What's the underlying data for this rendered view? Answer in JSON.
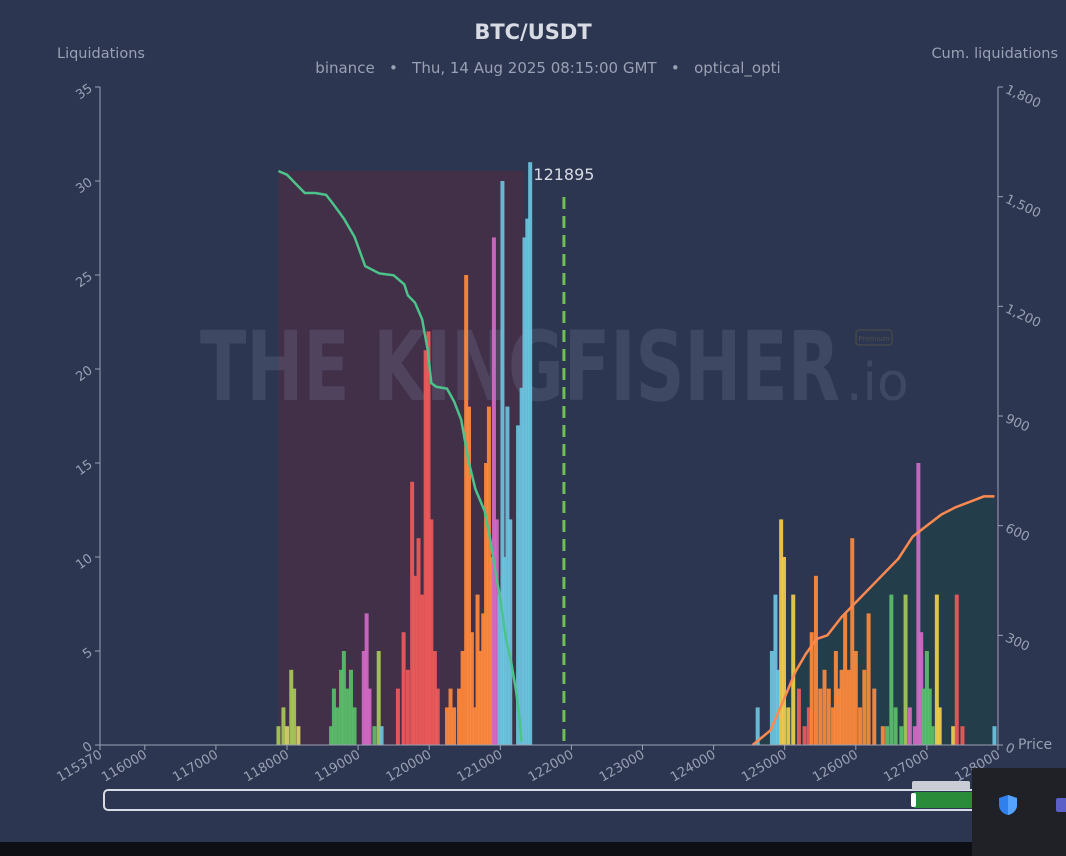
{
  "header": {
    "title": "BTC/USDT",
    "subtitle_exchange": "binance",
    "subtitle_sep": "•",
    "subtitle_time": "Thu, 14 Aug 2025 08:15:00 GMT",
    "subtitle_user": "optical_opti"
  },
  "watermark": {
    "brand": "THE KINGFISHER",
    "suffix": ".io",
    "badge": "Premium"
  },
  "chart_data": {
    "type": "bar",
    "ylabel": "Liquidations",
    "y2label": "Cum. liquidations",
    "price_axis_label": "Price",
    "current_price_label": "121895",
    "current_price": 121895,
    "xlim": [
      115370,
      128000
    ],
    "ylim": [
      0,
      35
    ],
    "y2lim": [
      0,
      1800
    ],
    "x_ticks": [
      115370,
      116000,
      117000,
      118000,
      119000,
      120000,
      121000,
      122000,
      123000,
      124000,
      125000,
      126000,
      127000,
      128000
    ],
    "y_ticks": [
      0,
      5,
      10,
      15,
      20,
      25,
      30,
      35
    ],
    "y2_ticks": [
      0,
      300,
      600,
      900,
      1200,
      1500,
      1800
    ],
    "y2_tick_labels": [
      "0",
      "300",
      "600",
      "900",
      "1,200",
      "1,500",
      "1,800"
    ],
    "grid": false,
    "bars": [
      {
        "x": 117880,
        "y": 1,
        "color": "#a7c957"
      },
      {
        "x": 117950,
        "y": 2,
        "color": "#a7c957"
      },
      {
        "x": 118000,
        "y": 1,
        "color": "#d9d36a"
      },
      {
        "x": 118060,
        "y": 4,
        "color": "#a7c957"
      },
      {
        "x": 118100,
        "y": 3,
        "color": "#a7c957"
      },
      {
        "x": 118160,
        "y": 1,
        "color": "#d9d36a"
      },
      {
        "x": 118620,
        "y": 1,
        "color": "#5bbf6a"
      },
      {
        "x": 118660,
        "y": 3,
        "color": "#5bbf6a"
      },
      {
        "x": 118710,
        "y": 2,
        "color": "#5bbf6a"
      },
      {
        "x": 118760,
        "y": 4,
        "color": "#5bbf6a"
      },
      {
        "x": 118800,
        "y": 5,
        "color": "#5bbf6a"
      },
      {
        "x": 118850,
        "y": 3,
        "color": "#5bbf6a"
      },
      {
        "x": 118900,
        "y": 4,
        "color": "#5bbf6a"
      },
      {
        "x": 118950,
        "y": 2,
        "color": "#5bbf6a"
      },
      {
        "x": 119080,
        "y": 5,
        "color": "#d36ac7"
      },
      {
        "x": 119120,
        "y": 7,
        "color": "#d36ac7"
      },
      {
        "x": 119160,
        "y": 3,
        "color": "#d36ac7"
      },
      {
        "x": 119230,
        "y": 1,
        "color": "#5bbf6a"
      },
      {
        "x": 119290,
        "y": 5,
        "color": "#a7c957"
      },
      {
        "x": 119330,
        "y": 1,
        "color": "#6cc4e0"
      },
      {
        "x": 119560,
        "y": 3,
        "color": "#ef5a5a"
      },
      {
        "x": 119640,
        "y": 6,
        "color": "#ef5a5a"
      },
      {
        "x": 119700,
        "y": 4,
        "color": "#ef5a5a"
      },
      {
        "x": 119760,
        "y": 14,
        "color": "#ef5a5a"
      },
      {
        "x": 119800,
        "y": 9,
        "color": "#ef5a5a"
      },
      {
        "x": 119850,
        "y": 11,
        "color": "#ef5a5a"
      },
      {
        "x": 119900,
        "y": 8,
        "color": "#ef5a5a"
      },
      {
        "x": 119950,
        "y": 21,
        "color": "#ef5a5a"
      },
      {
        "x": 119990,
        "y": 22,
        "color": "#ef5a5a"
      },
      {
        "x": 120030,
        "y": 12,
        "color": "#ef5a5a"
      },
      {
        "x": 120080,
        "y": 5,
        "color": "#ef5a5a"
      },
      {
        "x": 120120,
        "y": 3,
        "color": "#ef5a5a"
      },
      {
        "x": 120250,
        "y": 2,
        "color": "#ff8a3d"
      },
      {
        "x": 120300,
        "y": 3,
        "color": "#ff8a3d"
      },
      {
        "x": 120350,
        "y": 2,
        "color": "#ff8a3d"
      },
      {
        "x": 120420,
        "y": 3,
        "color": "#ff8a3d"
      },
      {
        "x": 120470,
        "y": 5,
        "color": "#ff8a3d"
      },
      {
        "x": 120520,
        "y": 25,
        "color": "#ff8a3d"
      },
      {
        "x": 120560,
        "y": 18,
        "color": "#ff8a3d"
      },
      {
        "x": 120600,
        "y": 6,
        "color": "#ff8a3d"
      },
      {
        "x": 120640,
        "y": 2,
        "color": "#ff8a3d"
      },
      {
        "x": 120680,
        "y": 8,
        "color": "#ff8a3d"
      },
      {
        "x": 120720,
        "y": 5,
        "color": "#ff8a3d"
      },
      {
        "x": 120760,
        "y": 7,
        "color": "#ff8a3d"
      },
      {
        "x": 120800,
        "y": 15,
        "color": "#ff8a3d"
      },
      {
        "x": 120840,
        "y": 18,
        "color": "#ff8a3d"
      },
      {
        "x": 120880,
        "y": 10,
        "color": "#ff8a3d"
      },
      {
        "x": 120910,
        "y": 27,
        "color": "#d36ac7"
      },
      {
        "x": 120950,
        "y": 12,
        "color": "#d36ac7"
      },
      {
        "x": 120990,
        "y": 8,
        "color": "#6cc4e0"
      },
      {
        "x": 121030,
        "y": 30,
        "color": "#6cc4e0"
      },
      {
        "x": 121060,
        "y": 10,
        "color": "#6cc4e0"
      },
      {
        "x": 121100,
        "y": 18,
        "color": "#6cc4e0"
      },
      {
        "x": 121140,
        "y": 12,
        "color": "#6cc4e0"
      },
      {
        "x": 121250,
        "y": 17,
        "color": "#6cc4e0"
      },
      {
        "x": 121300,
        "y": 19,
        "color": "#6cc4e0"
      },
      {
        "x": 121340,
        "y": 27,
        "color": "#6cc4e0"
      },
      {
        "x": 121380,
        "y": 28,
        "color": "#6cc4e0"
      },
      {
        "x": 121420,
        "y": 31,
        "color": "#6cc4e0"
      },
      {
        "x": 124620,
        "y": 2,
        "color": "#6cc4e0"
      },
      {
        "x": 124820,
        "y": 5,
        "color": "#6cc4e0"
      },
      {
        "x": 124870,
        "y": 8,
        "color": "#6cc4e0"
      },
      {
        "x": 124900,
        "y": 4,
        "color": "#6cc4e0"
      },
      {
        "x": 124950,
        "y": 12,
        "color": "#f2cd4b"
      },
      {
        "x": 124990,
        "y": 10,
        "color": "#f2cd4b"
      },
      {
        "x": 125050,
        "y": 2,
        "color": "#f2cd4b"
      },
      {
        "x": 125120,
        "y": 8,
        "color": "#f2cd4b"
      },
      {
        "x": 125200,
        "y": 3,
        "color": "#ef5a5a"
      },
      {
        "x": 125280,
        "y": 1,
        "color": "#ef5a5a"
      },
      {
        "x": 125340,
        "y": 2,
        "color": "#ef5a5a"
      },
      {
        "x": 125380,
        "y": 6,
        "color": "#ff8a3d"
      },
      {
        "x": 125440,
        "y": 9,
        "color": "#ff8a3d"
      },
      {
        "x": 125500,
        "y": 3,
        "color": "#ff8a3d"
      },
      {
        "x": 125560,
        "y": 4,
        "color": "#ff8a3d"
      },
      {
        "x": 125620,
        "y": 3,
        "color": "#ff8a3d"
      },
      {
        "x": 125680,
        "y": 2,
        "color": "#ff8a3d"
      },
      {
        "x": 125720,
        "y": 5,
        "color": "#ff8a3d"
      },
      {
        "x": 125760,
        "y": 3,
        "color": "#ff8a3d"
      },
      {
        "x": 125800,
        "y": 4,
        "color": "#ff8a3d"
      },
      {
        "x": 125850,
        "y": 7,
        "color": "#ff8a3d"
      },
      {
        "x": 125900,
        "y": 4,
        "color": "#ff8a3d"
      },
      {
        "x": 125950,
        "y": 11,
        "color": "#ff8a3d"
      },
      {
        "x": 126000,
        "y": 5,
        "color": "#ff8a3d"
      },
      {
        "x": 126060,
        "y": 2,
        "color": "#ff8a3d"
      },
      {
        "x": 126120,
        "y": 4,
        "color": "#ff8a3d"
      },
      {
        "x": 126180,
        "y": 7,
        "color": "#ff8a3d"
      },
      {
        "x": 126260,
        "y": 3,
        "color": "#ff8a3d"
      },
      {
        "x": 126380,
        "y": 1,
        "color": "#ff8a3d"
      },
      {
        "x": 126440,
        "y": 1,
        "color": "#5bbf6a"
      },
      {
        "x": 126500,
        "y": 8,
        "color": "#5bbf6a"
      },
      {
        "x": 126560,
        "y": 2,
        "color": "#5bbf6a"
      },
      {
        "x": 126640,
        "y": 1,
        "color": "#5bbf6a"
      },
      {
        "x": 126700,
        "y": 8,
        "color": "#a7c957"
      },
      {
        "x": 126760,
        "y": 2,
        "color": "#d36ac7"
      },
      {
        "x": 126830,
        "y": 1,
        "color": "#d36ac7"
      },
      {
        "x": 126880,
        "y": 15,
        "color": "#d36ac7"
      },
      {
        "x": 126920,
        "y": 6,
        "color": "#d36ac7"
      },
      {
        "x": 126960,
        "y": 3,
        "color": "#5bbf6a"
      },
      {
        "x": 127000,
        "y": 5,
        "color": "#5bbf6a"
      },
      {
        "x": 127040,
        "y": 3,
        "color": "#5bbf6a"
      },
      {
        "x": 127080,
        "y": 1,
        "color": "#5bbf6a"
      },
      {
        "x": 127140,
        "y": 8,
        "color": "#f2cd4b"
      },
      {
        "x": 127180,
        "y": 2,
        "color": "#f2cd4b"
      },
      {
        "x": 127370,
        "y": 1,
        "color": "#f2cd4b"
      },
      {
        "x": 127420,
        "y": 8,
        "color": "#ef5a5a"
      },
      {
        "x": 127500,
        "y": 1,
        "color": "#ef5a5a"
      },
      {
        "x": 127950,
        "y": 1,
        "color": "#6cc4e0"
      }
    ],
    "series": [
      {
        "name": "",
        "color": "#4cc38a",
        "points": [
          [
            117880,
            1570
          ],
          [
            118000,
            1560
          ],
          [
            118150,
            1530
          ],
          [
            118250,
            1510
          ],
          [
            118400,
            1510
          ],
          [
            118550,
            1505
          ],
          [
            118650,
            1480
          ],
          [
            118800,
            1440
          ],
          [
            118950,
            1390
          ],
          [
            119100,
            1310
          ],
          [
            119300,
            1290
          ],
          [
            119500,
            1285
          ],
          [
            119650,
            1260
          ],
          [
            119700,
            1230
          ],
          [
            119800,
            1210
          ],
          [
            119900,
            1165
          ],
          [
            119980,
            1080
          ],
          [
            120030,
            990
          ],
          [
            120100,
            980
          ],
          [
            120250,
            975
          ],
          [
            120350,
            940
          ],
          [
            120450,
            890
          ],
          [
            120550,
            780
          ],
          [
            120650,
            700
          ],
          [
            120780,
            640
          ],
          [
            120860,
            560
          ],
          [
            120930,
            475
          ],
          [
            121000,
            400
          ],
          [
            121080,
            290
          ],
          [
            121150,
            230
          ],
          [
            121220,
            150
          ],
          [
            121270,
            75
          ],
          [
            121300,
            10
          ]
        ]
      },
      {
        "name": "",
        "color": "#ff8a50",
        "points": [
          [
            124550,
            0
          ],
          [
            124800,
            40
          ],
          [
            125000,
            130
          ],
          [
            125150,
            200
          ],
          [
            125300,
            250
          ],
          [
            125450,
            290
          ],
          [
            125600,
            300
          ],
          [
            125800,
            350
          ],
          [
            126000,
            390
          ],
          [
            126200,
            430
          ],
          [
            126400,
            470
          ],
          [
            126600,
            510
          ],
          [
            126800,
            570
          ],
          [
            127000,
            600
          ],
          [
            127200,
            630
          ],
          [
            127400,
            650
          ],
          [
            127600,
            665
          ],
          [
            127800,
            680
          ],
          [
            127950,
            680
          ]
        ]
      }
    ]
  }
}
